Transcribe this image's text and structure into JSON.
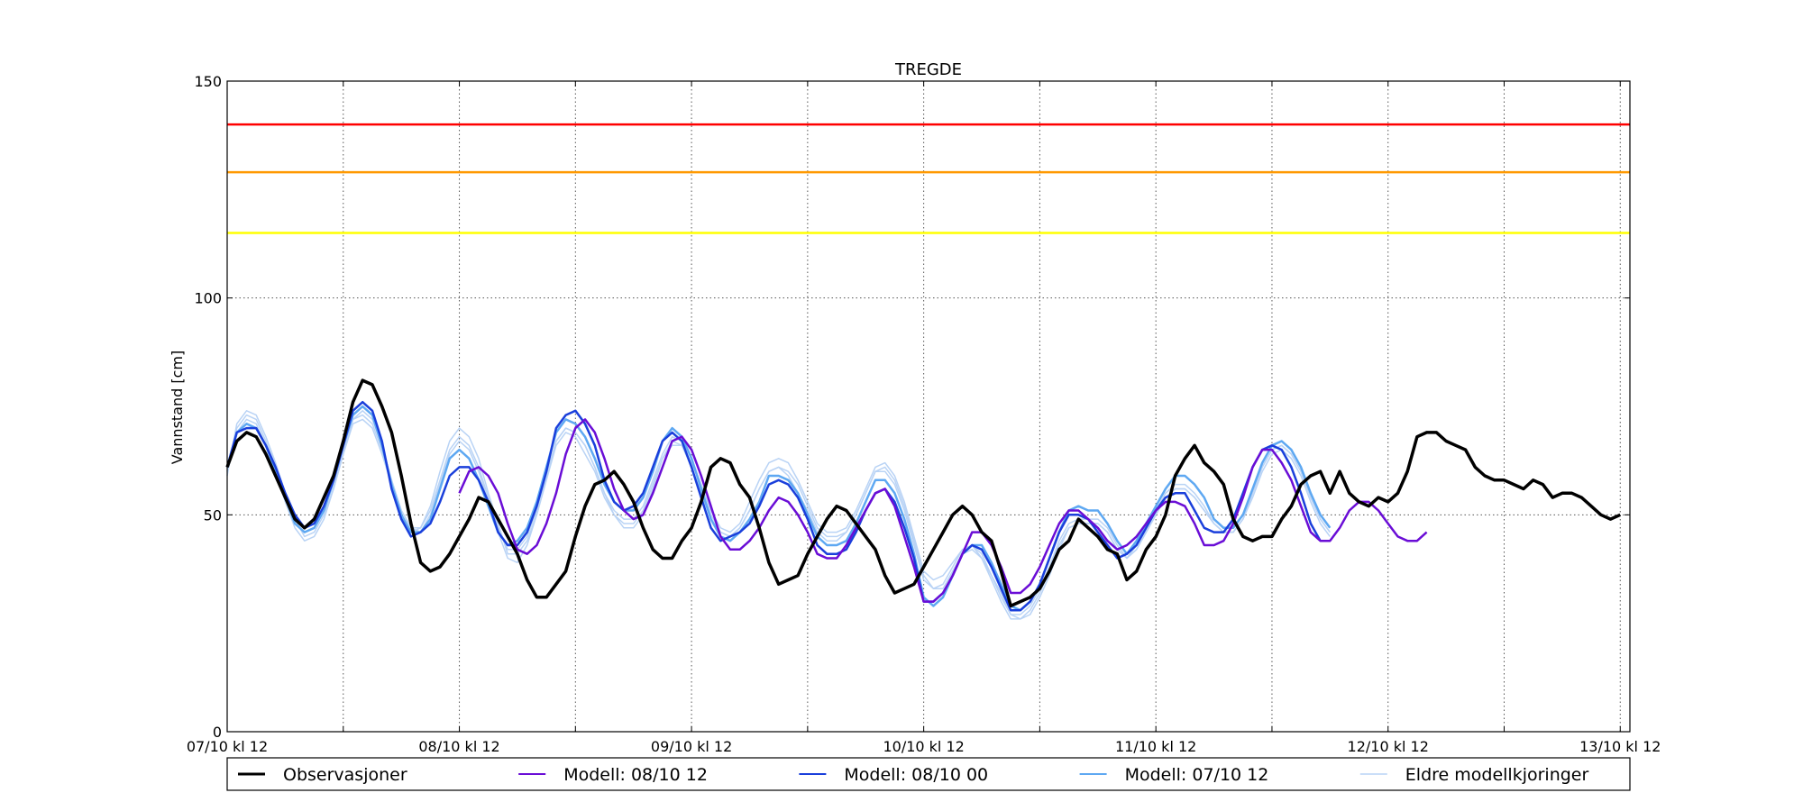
{
  "chart_data": {
    "type": "line",
    "title": "TREGDE",
    "xlabel": "",
    "ylabel": "Vannstand [cm]",
    "ylim": [
      0,
      150
    ],
    "xlim": [
      "2016-10-07T12:00",
      "2016-10-13T13:00"
    ],
    "y_ticks": [
      0,
      50,
      100,
      150
    ],
    "x_ticks": [
      {
        "t": "2016-10-07T12:00",
        "label": "07/10 kl 12"
      },
      {
        "t": "2016-10-08T12:00",
        "label": "08/10 kl 12"
      },
      {
        "t": "2016-10-09T12:00",
        "label": "09/10 kl 12"
      },
      {
        "t": "2016-10-10T12:00",
        "label": "10/10 kl 12"
      },
      {
        "t": "2016-10-11T12:00",
        "label": "11/10 kl 12"
      },
      {
        "t": "2016-10-12T12:00",
        "label": "12/10 kl 12"
      },
      {
        "t": "2016-10-13T12:00",
        "label": "13/10 kl 12"
      }
    ],
    "grid": true,
    "legend_position": "bottom",
    "thresholds": [
      {
        "value": 140,
        "color": "#ff0000"
      },
      {
        "value": 129,
        "color": "#ff9900"
      },
      {
        "value": 115,
        "color": "#ffff00"
      }
    ],
    "series": [
      {
        "name": "Observasjoner",
        "color": "#000000",
        "width": 3.5,
        "x_start": "2016-10-07T12:00",
        "step_hours": 1,
        "values": [
          61,
          67,
          69,
          68,
          64,
          59,
          54,
          49,
          47,
          49,
          54,
          59,
          67,
          76,
          81,
          80,
          75,
          69,
          59,
          48,
          39,
          37,
          38,
          41,
          45,
          49,
          54,
          53,
          49,
          45,
          41,
          35,
          31,
          31,
          34,
          37,
          45,
          52,
          57,
          58,
          60,
          57,
          53,
          47,
          42,
          40,
          40,
          44,
          47,
          53,
          61,
          63,
          62,
          57,
          54,
          47,
          39,
          34,
          35,
          36,
          41,
          45,
          49,
          52,
          51,
          48,
          45,
          42,
          36,
          32,
          33,
          34,
          38,
          42,
          46,
          50,
          52,
          50,
          46,
          44,
          37,
          29,
          30,
          31,
          33,
          37,
          42,
          44,
          49,
          47,
          45,
          42,
          41,
          35,
          37,
          42,
          45,
          50,
          59,
          63,
          66,
          62,
          60,
          57,
          49,
          45,
          44,
          45,
          45,
          49,
          52,
          57,
          59,
          60,
          55,
          60,
          55,
          53,
          52,
          54,
          53,
          55,
          60,
          68,
          69,
          69,
          67,
          66,
          65,
          61,
          59,
          58,
          58,
          57,
          56,
          58,
          57,
          54,
          55,
          55,
          54,
          52,
          50,
          49,
          50
        ]
      },
      {
        "name": "Modell: 08/10 12",
        "color": "#6a0dd6",
        "width": 2.5,
        "x_start": "2016-10-08T12:00",
        "step_hours": 1,
        "values": [
          55,
          60,
          61,
          59,
          55,
          48,
          42,
          41,
          43,
          48,
          55,
          64,
          70,
          72,
          69,
          63,
          56,
          51,
          49,
          50,
          55,
          61,
          67,
          68,
          65,
          59,
          52,
          45,
          42,
          42,
          44,
          47,
          51,
          54,
          53,
          50,
          46,
          41,
          40,
          40,
          43,
          47,
          51,
          55,
          56,
          52,
          45,
          38,
          30,
          30,
          32,
          36,
          41,
          46,
          46,
          43,
          38,
          32,
          32,
          34,
          38,
          43,
          48,
          51,
          51,
          49,
          47,
          44,
          42,
          43,
          45,
          48,
          51,
          53,
          53,
          52,
          48,
          43,
          43,
          44,
          48,
          54,
          61,
          65,
          65,
          62,
          58,
          52,
          46,
          44,
          44,
          47,
          51,
          53,
          53,
          51,
          48,
          45,
          44,
          44,
          46
        ]
      },
      {
        "name": "Modell: 08/10 00",
        "color": "#1a3fdb",
        "width": 2.5,
        "x_start": "2016-10-07T12:00",
        "step_hours": 1,
        "values": [
          61,
          69,
          70,
          70,
          66,
          61,
          55,
          50,
          47,
          48,
          52,
          58,
          66,
          74,
          76,
          74,
          67,
          56,
          49,
          45,
          46,
          48,
          53,
          59,
          61,
          61,
          58,
          53,
          46,
          43,
          43,
          46,
          52,
          60,
          70,
          73,
          74,
          71,
          66,
          58,
          53,
          51,
          52,
          55,
          61,
          67,
          69,
          67,
          61,
          54,
          47,
          44,
          45,
          46,
          48,
          52,
          57,
          58,
          57,
          54,
          49,
          43,
          41,
          41,
          42,
          46,
          51,
          55,
          56,
          53,
          47,
          40,
          30,
          30,
          32,
          36,
          41,
          43,
          42,
          38,
          33,
          28,
          28,
          30,
          34,
          40,
          46,
          50,
          50,
          49,
          46,
          43,
          40,
          41,
          43,
          47,
          51,
          54,
          55,
          55,
          51,
          47,
          46,
          46,
          49,
          55,
          61,
          65,
          66,
          65,
          61,
          55,
          48,
          44
        ]
      },
      {
        "name": "Modell: 07/10 12",
        "color": "#5ea8f2",
        "width": 2.5,
        "x_start": "2016-10-07T12:00",
        "step_hours": 1,
        "values": [
          61,
          69,
          71,
          70,
          66,
          60,
          54,
          48,
          46,
          47,
          51,
          58,
          66,
          73,
          75,
          73,
          66,
          57,
          50,
          46,
          46,
          49,
          56,
          63,
          65,
          63,
          58,
          52,
          46,
          43,
          44,
          47,
          53,
          61,
          69,
          72,
          71,
          68,
          63,
          57,
          53,
          51,
          51,
          54,
          60,
          67,
          70,
          68,
          63,
          56,
          49,
          45,
          44,
          46,
          49,
          53,
          59,
          59,
          58,
          55,
          50,
          45,
          43,
          43,
          44,
          48,
          53,
          58,
          58,
          55,
          49,
          41,
          31,
          29,
          31,
          36,
          41,
          43,
          43,
          39,
          34,
          29,
          28,
          30,
          34,
          40,
          46,
          51,
          52,
          51,
          51,
          48,
          44,
          41,
          44,
          48,
          52,
          56,
          59,
          59,
          57,
          54,
          49,
          47,
          47,
          50,
          56,
          62,
          66,
          67,
          65,
          61,
          55,
          50,
          47
        ]
      },
      {
        "name": "Eldre modellkjoringer",
        "color": "#b9d3f5",
        "width": 1.5,
        "x_start": "2016-10-07T12:00",
        "step_hours": 1,
        "values": [
          60,
          70,
          73,
          72,
          67,
          61,
          54,
          48,
          46,
          47,
          51,
          57,
          65,
          72,
          73,
          71,
          65,
          58,
          51,
          47,
          47,
          51,
          58,
          65,
          68,
          66,
          61,
          54,
          47,
          42,
          42,
          45,
          51,
          59,
          67,
          70,
          69,
          66,
          61,
          55,
          51,
          49,
          49,
          52,
          58,
          64,
          68,
          67,
          63,
          57,
          50,
          46,
          45,
          47,
          51,
          56,
          60,
          61,
          60,
          57,
          52,
          47,
          45,
          45,
          46,
          50,
          55,
          60,
          60,
          57,
          51,
          43,
          35,
          33,
          34,
          38,
          42,
          43,
          41,
          36,
          31,
          27,
          27,
          29,
          33,
          38,
          44,
          48,
          49,
          49,
          49,
          47,
          43,
          40,
          43,
          47,
          51,
          55,
          57,
          57,
          55,
          52,
          48,
          46,
          46,
          49,
          55,
          61,
          65,
          66,
          64,
          60,
          54,
          49,
          46
        ]
      }
    ],
    "extra_ensemble": [
      {
        "x_start": "2016-10-07T12:00",
        "step_hours": 1,
        "values": [
          59,
          71,
          74,
          73,
          68,
          62,
          55,
          49,
          45,
          46,
          50,
          56,
          64,
          71,
          72,
          70,
          64,
          57,
          50,
          46,
          47,
          52,
          60,
          67,
          70,
          68,
          63,
          55,
          48,
          41,
          41,
          44,
          50,
          58,
          66,
          69,
          68,
          64,
          60,
          54,
          50,
          48,
          48,
          51,
          57,
          63,
          66,
          66,
          62,
          57,
          51,
          47,
          46,
          48,
          53,
          58,
          62,
          63,
          62,
          58,
          53,
          48,
          46,
          46,
          47,
          51,
          56,
          61,
          62,
          59,
          53,
          45,
          37,
          35,
          36,
          39,
          42,
          43,
          40,
          35,
          30,
          26,
          26,
          28,
          32,
          37,
          43,
          47,
          48,
          48,
          48,
          46,
          42,
          40,
          42,
          46,
          50,
          54,
          56,
          56,
          54,
          51,
          48,
          46,
          46,
          49,
          54,
          60,
          64,
          65,
          63,
          59,
          53,
          48,
          45
        ]
      },
      {
        "x_start": "2016-10-07T12:00",
        "step_hours": 1,
        "values": [
          60,
          69,
          72,
          71,
          66,
          60,
          53,
          47,
          44,
          45,
          49,
          56,
          64,
          72,
          74,
          72,
          66,
          58,
          51,
          47,
          46,
          50,
          57,
          64,
          67,
          65,
          60,
          53,
          46,
          40,
          39,
          43,
          50,
          59,
          67,
          70,
          69,
          66,
          61,
          55,
          50,
          47,
          47,
          50,
          56,
          63,
          67,
          66,
          61,
          55,
          49,
          46,
          45,
          47,
          51,
          56,
          60,
          61,
          59,
          55,
          51,
          46,
          44,
          44,
          46,
          50,
          55,
          60,
          61,
          58,
          52,
          44,
          36,
          33,
          33,
          37,
          41,
          42,
          40,
          36,
          32,
          27,
          26,
          27,
          31,
          36,
          42,
          47,
          48,
          48,
          48,
          46,
          42,
          40,
          42,
          46,
          50,
          54,
          56,
          56,
          54,
          51,
          48,
          46,
          46,
          49,
          55,
          61,
          65,
          66,
          64,
          60,
          54,
          49,
          46
        ]
      }
    ]
  }
}
